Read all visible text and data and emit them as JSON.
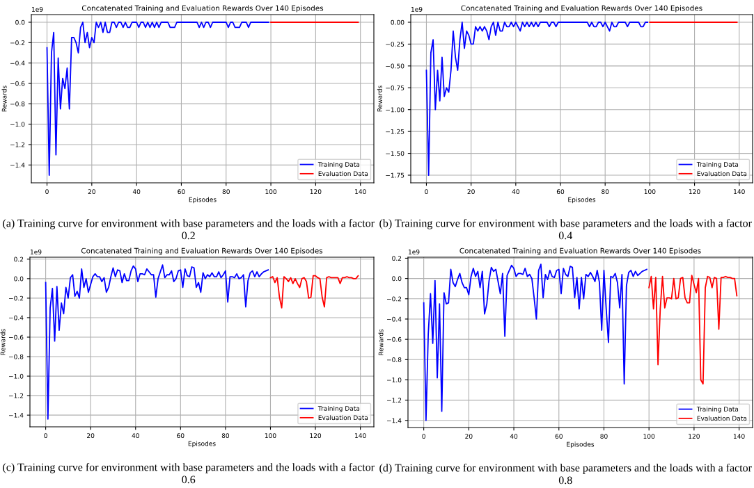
{
  "chart_data": [
    {
      "type": "line",
      "title": "Concatenated Training and Evaluation Rewards Over 140 Episodes",
      "xlabel": "Episodes",
      "ylabel": "Rewards",
      "annotations": [
        "1e9",
        "(a) Training curve for environment with base parameters and the loads with a factor 0.2"
      ],
      "xlim": [
        -7,
        146
      ],
      "xticks": [
        0,
        20,
        40,
        60,
        80,
        100,
        120,
        140
      ],
      "ylim": [
        -1.575,
        0.075
      ],
      "yticks": [
        {
          "value": -1.4,
          "label": "−1.4"
        },
        {
          "value": -1.2,
          "label": "−1.2"
        },
        {
          "value": -1.0,
          "label": "−1.0"
        },
        {
          "value": -0.8,
          "label": "−0.8"
        },
        {
          "value": -0.6,
          "label": "−0.6"
        },
        {
          "value": -0.4,
          "label": "−0.4"
        },
        {
          "value": -0.2,
          "label": "−0.2"
        },
        {
          "value": 0.0,
          "label": "0.0"
        }
      ],
      "grid": true,
      "legend": "bottom right",
      "series": [
        {
          "name": "Training Data",
          "color": "#0000ff",
          "x": [
            0,
            1,
            2,
            3,
            4,
            5,
            6,
            7,
            8,
            9,
            10,
            11,
            12,
            13,
            14,
            15,
            16,
            17,
            18,
            19,
            20,
            21,
            22,
            23,
            24,
            25,
            26,
            27,
            28,
            29,
            30,
            31,
            32,
            33,
            34,
            35,
            36,
            37,
            38,
            39,
            40,
            41,
            42,
            43,
            44,
            45,
            46,
            47,
            48,
            49,
            50,
            51,
            52,
            53,
            54,
            55,
            56,
            57,
            58,
            59,
            60,
            61,
            62,
            63,
            64,
            65,
            66,
            67,
            68,
            69,
            70,
            71,
            72,
            73,
            74,
            75,
            76,
            77,
            78,
            79,
            80,
            81,
            82,
            83,
            84,
            85,
            86,
            87,
            88,
            89,
            90,
            91,
            92,
            93,
            94,
            95,
            96,
            97,
            98,
            99
          ],
          "values": [
            -0.25,
            -1.5,
            -0.3,
            -0.1,
            -1.3,
            -0.35,
            -0.85,
            -0.55,
            -0.65,
            -0.45,
            -0.85,
            -0.15,
            -0.15,
            -0.2,
            -0.3,
            -0.05,
            0,
            -0.2,
            -0.1,
            -0.25,
            -0.15,
            -0.2,
            0,
            -0.05,
            0,
            -0.1,
            0,
            -0.1,
            -0.1,
            0,
            0,
            -0.05,
            0,
            0,
            -0.05,
            0,
            -0.05,
            -0.05,
            0,
            0,
            0,
            -0.05,
            0,
            0,
            -0.05,
            0,
            -0.05,
            0,
            -0.05,
            0,
            -0.05,
            0,
            0,
            0,
            0,
            -0.05,
            -0.05,
            -0.05,
            0,
            0,
            0,
            0,
            0,
            0,
            0,
            0,
            0,
            0,
            -0.05,
            0,
            -0.05,
            0,
            0,
            -0.05,
            0,
            0,
            0,
            0,
            0,
            0,
            0,
            -0.05,
            0,
            0,
            -0.05,
            -0.05,
            -0.05,
            0,
            0,
            0,
            -0.05,
            0,
            0,
            0,
            0,
            0,
            0,
            0,
            0,
            0
          ]
        },
        {
          "name": "Evaluation Data",
          "color": "#ff0000",
          "x": [
            100,
            101,
            102,
            103,
            104,
            105,
            106,
            107,
            108,
            109,
            110,
            111,
            112,
            113,
            114,
            115,
            116,
            117,
            118,
            119,
            120,
            121,
            122,
            123,
            124,
            125,
            126,
            127,
            128,
            129,
            130,
            131,
            132,
            133,
            134,
            135,
            136,
            137,
            138,
            139
          ],
          "values": [
            0,
            0,
            0,
            0,
            0,
            0,
            0,
            0,
            0,
            0,
            0,
            0,
            0,
            0,
            0,
            0,
            0,
            0,
            0,
            0,
            0,
            0,
            0,
            0,
            0,
            0,
            0,
            0,
            0,
            0,
            0,
            0,
            0,
            0,
            0,
            0,
            0,
            0,
            0,
            0
          ]
        }
      ]
    },
    {
      "type": "line",
      "title": "Concatenated Training and Evaluation Rewards Over 140 Episodes",
      "xlabel": "Episodes",
      "ylabel": "Rewards",
      "annotations": [
        "1e9",
        "(b) Training curve for environment with base parameters and the loads with a factor 0.4"
      ],
      "xlim": [
        -7,
        146
      ],
      "xticks": [
        0,
        20,
        40,
        60,
        80,
        100,
        120,
        140
      ],
      "ylim": [
        -1.8375,
        0.0875
      ],
      "yticks": [
        {
          "value": -1.75,
          "label": "−1.75"
        },
        {
          "value": -1.5,
          "label": "−1.50"
        },
        {
          "value": -1.25,
          "label": "−1.25"
        },
        {
          "value": -1.0,
          "label": "−1.00"
        },
        {
          "value": -0.75,
          "label": "−0.75"
        },
        {
          "value": -0.5,
          "label": "−0.50"
        },
        {
          "value": -0.25,
          "label": "−0.25"
        },
        {
          "value": 0.0,
          "label": "0.00"
        }
      ],
      "grid": true,
      "legend": "bottom right",
      "series": [
        {
          "name": "Training Data",
          "color": "#0000ff",
          "x": [
            0,
            1,
            2,
            3,
            4,
            5,
            6,
            7,
            8,
            9,
            10,
            11,
            12,
            13,
            14,
            15,
            16,
            17,
            18,
            19,
            20,
            21,
            22,
            23,
            24,
            25,
            26,
            27,
            28,
            29,
            30,
            31,
            32,
            33,
            34,
            35,
            36,
            37,
            38,
            39,
            40,
            41,
            42,
            43,
            44,
            45,
            46,
            47,
            48,
            49,
            50,
            51,
            52,
            53,
            54,
            55,
            56,
            57,
            58,
            59,
            60,
            61,
            62,
            63,
            64,
            65,
            66,
            67,
            68,
            69,
            70,
            71,
            72,
            73,
            74,
            75,
            76,
            77,
            78,
            79,
            80,
            81,
            82,
            83,
            84,
            85,
            86,
            87,
            88,
            89,
            90,
            91,
            92,
            93,
            94,
            95,
            96,
            97,
            98,
            99
          ],
          "values": [
            -0.55,
            -1.75,
            -0.35,
            -0.2,
            -1.0,
            -0.55,
            -0.9,
            -0.4,
            -0.85,
            -0.75,
            -0.8,
            -0.55,
            -0.1,
            -0.4,
            -0.55,
            -0.2,
            0,
            -0.3,
            -0.1,
            -0.15,
            -0.25,
            -0.25,
            -0.05,
            -0.1,
            -0.05,
            -0.1,
            -0.05,
            -0.1,
            -0.2,
            -0.05,
            0,
            -0.15,
            0,
            -0.1,
            -0.1,
            0,
            -0.05,
            -0.05,
            0,
            -0.05,
            0,
            -0.05,
            -0.1,
            0,
            -0.05,
            0,
            -0.05,
            0,
            -0.05,
            0,
            -0.05,
            0,
            0,
            0,
            0,
            -0.05,
            0,
            0,
            -0.05,
            0,
            0,
            0,
            0,
            0,
            0,
            0,
            0,
            0,
            0,
            0,
            0,
            0,
            0,
            -0.05,
            0,
            -0.05,
            -0.05,
            0,
            0,
            -0.05,
            0,
            -0.05,
            -0.1,
            0,
            -0.05,
            -0.05,
            0,
            0,
            0,
            0,
            -0.05,
            0,
            0,
            0,
            0,
            0,
            -0.05,
            -0.05,
            0,
            0
          ]
        },
        {
          "name": "Evaluation Data",
          "color": "#ff0000",
          "x": [
            100,
            101,
            102,
            103,
            104,
            105,
            106,
            107,
            108,
            109,
            110,
            111,
            112,
            113,
            114,
            115,
            116,
            117,
            118,
            119,
            120,
            121,
            122,
            123,
            124,
            125,
            126,
            127,
            128,
            129,
            130,
            131,
            132,
            133,
            134,
            135,
            136,
            137,
            138,
            139
          ],
          "values": [
            0,
            0,
            0,
            0,
            0,
            0,
            0,
            0,
            0,
            0,
            0,
            0,
            0,
            0,
            0,
            0,
            0,
            0,
            0,
            0,
            0,
            0,
            0,
            0,
            0,
            0,
            0,
            0,
            0,
            0,
            0,
            0,
            0,
            0,
            0,
            0,
            0,
            0,
            0,
            0
          ]
        }
      ]
    },
    {
      "type": "line",
      "title": "Concatenated Training and Evaluation Rewards Over 140 Episodes",
      "xlabel": "Episodes",
      "ylabel": "Rewards",
      "annotations": [
        "1e9",
        "(c) Training curve for environment with base parameters and the loads with a factor 0.6"
      ],
      "xlim": [
        -7,
        146
      ],
      "xticks": [
        0,
        20,
        40,
        60,
        80,
        100,
        120,
        140
      ],
      "ylim": [
        -1.52,
        0.22
      ],
      "yticks": [
        {
          "value": -1.4,
          "label": "−1.4"
        },
        {
          "value": -1.2,
          "label": "−1.2"
        },
        {
          "value": -1.0,
          "label": "−1.0"
        },
        {
          "value": -0.8,
          "label": "−0.8"
        },
        {
          "value": -0.6,
          "label": "−0.6"
        },
        {
          "value": -0.4,
          "label": "−0.4"
        },
        {
          "value": -0.2,
          "label": "−0.2"
        },
        {
          "value": 0.0,
          "label": "0.0"
        },
        {
          "value": 0.2,
          "label": "0.2"
        }
      ],
      "grid": true,
      "legend": "bottom right",
      "series": [
        {
          "name": "Training Data",
          "color": "#0000ff",
          "x": [
            0,
            1,
            2,
            3,
            4,
            5,
            6,
            7,
            8,
            9,
            10,
            11,
            12,
            13,
            14,
            15,
            16,
            17,
            18,
            19,
            20,
            21,
            22,
            23,
            24,
            25,
            26,
            27,
            28,
            29,
            30,
            31,
            32,
            33,
            34,
            35,
            36,
            37,
            38,
            39,
            40,
            41,
            42,
            43,
            44,
            45,
            46,
            47,
            48,
            49,
            50,
            51,
            52,
            53,
            54,
            55,
            56,
            57,
            58,
            59,
            60,
            61,
            62,
            63,
            64,
            65,
            66,
            67,
            68,
            69,
            70,
            71,
            72,
            73,
            74,
            75,
            76,
            77,
            78,
            79,
            80,
            81,
            82,
            83,
            84,
            85,
            86,
            87,
            88,
            89,
            90,
            91,
            92,
            93,
            94,
            95,
            96,
            97,
            98,
            99
          ],
          "values": [
            -0.04,
            -1.44,
            -0.3,
            -0.1,
            -0.64,
            -0.08,
            -0.53,
            -0.25,
            -0.36,
            -0.09,
            -0.2,
            0.01,
            0.04,
            -0.18,
            -0.13,
            -0.2,
            0.1,
            -0.09,
            0.0,
            -0.14,
            -0.06,
            0.02,
            0.05,
            0.02,
            0.02,
            -0.03,
            0.01,
            -0.14,
            -0.09,
            0.02,
            0.11,
            0.02,
            0.09,
            0.08,
            -0.04,
            0.05,
            -0.02,
            -0.02,
            0.08,
            0.13,
            0.1,
            -0.03,
            0.05,
            0.05,
            0.04,
            0.1,
            0.07,
            0.04,
            0.04,
            -0.19,
            0.0,
            0.07,
            0.14,
            0.01,
            0.04,
            0.04,
            0.08,
            -0.03,
            0.0,
            0.08,
            0.09,
            -0.09,
            0.1,
            0.03,
            0.02,
            0.12,
            0.11,
            -0.09,
            -0.04,
            -0.14,
            0.06,
            0.0,
            0.04,
            0.02,
            0.06,
            0.02,
            0.02,
            0.07,
            0.01,
            0.04,
            0.08,
            -0.24,
            0.02,
            0.02,
            0.01,
            0.05,
            0.0,
            0.01,
            0.04,
            -0.29,
            -0.02,
            0.06,
            0.08,
            0.02,
            0.07,
            0.02,
            0.05,
            0.07,
            0.08,
            0.09
          ]
        },
        {
          "name": "Evaluation Data",
          "color": "#ff0000",
          "x": [
            100,
            101,
            102,
            103,
            104,
            105,
            106,
            107,
            108,
            109,
            110,
            111,
            112,
            113,
            114,
            115,
            116,
            117,
            118,
            119,
            120,
            121,
            122,
            123,
            124,
            125,
            126,
            127,
            128,
            129,
            130,
            131,
            132,
            133,
            134,
            135,
            136,
            137,
            138,
            139
          ],
          "values": [
            0.01,
            0.02,
            -0.04,
            0.01,
            -0.19,
            -0.3,
            0.02,
            0.0,
            -0.03,
            0.01,
            -0.05,
            0.0,
            -0.05,
            -0.09,
            0.0,
            0.01,
            -0.03,
            -0.2,
            -0.19,
            0.03,
            0.03,
            0.01,
            0.0,
            -0.19,
            -0.29,
            0.01,
            0.02,
            0.01,
            0.01,
            0.01,
            0.01,
            -0.05,
            0.01,
            0.01,
            0.02,
            0.01,
            0.01,
            0.0,
            0.0,
            0.03
          ]
        }
      ]
    },
    {
      "type": "line",
      "title": "Concatenated Training and Evaluation Rewards Over 140 Episodes",
      "xlabel": "Episodes",
      "ylabel": "Rewards",
      "annotations": [
        "1e9",
        "(d) Training curve for environment with base parameters and the loads with a factor 0.8"
      ],
      "xlim": [
        -7,
        146
      ],
      "xticks": [
        0,
        20,
        40,
        60,
        80,
        100,
        120,
        140
      ],
      "ylim": [
        -1.47,
        0.21
      ],
      "yticks": [
        {
          "value": -1.4,
          "label": "−1.4"
        },
        {
          "value": -1.2,
          "label": "−1.2"
        },
        {
          "value": -1.0,
          "label": "−1.0"
        },
        {
          "value": -0.8,
          "label": "−0.8"
        },
        {
          "value": -0.6,
          "label": "−0.6"
        },
        {
          "value": -0.4,
          "label": "−0.4"
        },
        {
          "value": -0.2,
          "label": "−0.2"
        },
        {
          "value": 0.0,
          "label": "0.0"
        },
        {
          "value": 0.2,
          "label": "0.2"
        }
      ],
      "grid": true,
      "legend": "bottom right",
      "series": [
        {
          "name": "Training Data",
          "color": "#0000ff",
          "x": [
            0,
            1,
            2,
            3,
            4,
            5,
            6,
            7,
            8,
            9,
            10,
            11,
            12,
            13,
            14,
            15,
            16,
            17,
            18,
            19,
            20,
            21,
            22,
            23,
            24,
            25,
            26,
            27,
            28,
            29,
            30,
            31,
            32,
            33,
            34,
            35,
            36,
            37,
            38,
            39,
            40,
            41,
            42,
            43,
            44,
            45,
            46,
            47,
            48,
            49,
            50,
            51,
            52,
            53,
            54,
            55,
            56,
            57,
            58,
            59,
            60,
            61,
            62,
            63,
            64,
            65,
            66,
            67,
            68,
            69,
            70,
            71,
            72,
            73,
            74,
            75,
            76,
            77,
            78,
            79,
            80,
            81,
            82,
            83,
            84,
            85,
            86,
            87,
            88,
            89,
            90,
            91,
            92,
            93,
            94,
            95,
            96,
            97,
            98,
            99
          ],
          "values": [
            -0.24,
            -1.4,
            -0.55,
            -0.15,
            -0.64,
            -0.02,
            -0.98,
            -0.25,
            -1.31,
            -0.14,
            -0.25,
            -0.24,
            0.09,
            -0.04,
            -0.08,
            -0.01,
            0.05,
            -0.04,
            -0.09,
            -0.09,
            -0.16,
            0.02,
            0.1,
            0.02,
            0.07,
            -0.09,
            0.07,
            -0.35,
            -0.25,
            -0.02,
            0.11,
            0.07,
            0.09,
            -0.03,
            -0.15,
            0.05,
            -0.57,
            0.03,
            0.08,
            0.13,
            0.1,
            0.02,
            0.05,
            0.05,
            0.04,
            0.1,
            0.02,
            0.04,
            0.0,
            -0.19,
            -0.4,
            0.08,
            0.14,
            -0.19,
            0.04,
            -0.01,
            0.08,
            0.02,
            0.01,
            0.08,
            0.09,
            -0.15,
            0.1,
            0.04,
            0.02,
            0.12,
            0.11,
            -0.19,
            0.01,
            -0.3,
            0.01,
            -0.2,
            0.04,
            0.02,
            0.06,
            0.02,
            -0.03,
            0.08,
            -0.04,
            -0.51,
            0.08,
            -0.3,
            -0.63,
            0.02,
            0.01,
            0.05,
            -0.04,
            -0.29,
            0.04,
            -1.04,
            -0.07,
            0.06,
            0.08,
            0.02,
            0.07,
            0.03,
            0.05,
            0.07,
            0.08,
            0.09
          ]
        },
        {
          "name": "Evaluation Data",
          "color": "#ff0000",
          "x": [
            100,
            101,
            102,
            103,
            104,
            105,
            106,
            107,
            108,
            109,
            110,
            111,
            112,
            113,
            114,
            115,
            116,
            117,
            118,
            119,
            120,
            121,
            122,
            123,
            124,
            125,
            126,
            127,
            128,
            129,
            130,
            131,
            132,
            133,
            134,
            135,
            136,
            137,
            138,
            139
          ],
          "values": [
            -0.09,
            0.02,
            -0.3,
            0.01,
            -0.85,
            -0.3,
            0.02,
            -0.29,
            -0.19,
            -0.19,
            -0.2,
            0.0,
            -0.2,
            -0.19,
            0.0,
            0.01,
            -0.19,
            -0.24,
            -0.24,
            0.03,
            -0.06,
            -0.14,
            0.0,
            -1.0,
            -1.04,
            -0.09,
            0.02,
            0.01,
            -0.09,
            0.01,
            0.0,
            -0.5,
            0.01,
            0.01,
            0.02,
            0.01,
            0.01,
            0.0,
            0.0,
            -0.17
          ]
        }
      ]
    }
  ]
}
